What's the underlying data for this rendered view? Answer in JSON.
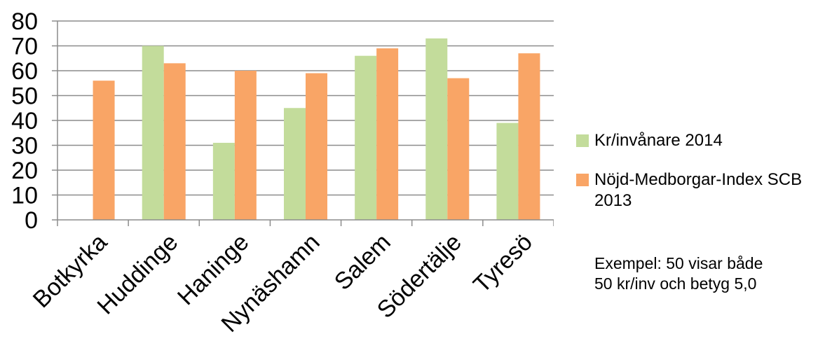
{
  "chart_data": {
    "type": "bar",
    "categories": [
      "Botkyrka",
      "Huddinge",
      "Haninge",
      "Nynäshamn",
      "Salem",
      "Södertälje",
      "Tyresö"
    ],
    "series": [
      {
        "name": "Kr/invånare 2014",
        "color": "#c3dc9b",
        "values": [
          null,
          70,
          31,
          45,
          66,
          73,
          39
        ]
      },
      {
        "name": "Nöjd-Medborgar-Index SCB 2013",
        "color": "#f9a566",
        "values": [
          56,
          63,
          60,
          59,
          69,
          57,
          67
        ]
      }
    ],
    "yticks": [
      "0",
      "10",
      "20",
      "30",
      "40",
      "50",
      "60",
      "70",
      "80"
    ],
    "ylim": [
      0,
      80
    ],
    "grid": true,
    "legend_position": "right",
    "note": "Exempel: 50 visar både\n50 kr/inv och betyg 5,0"
  }
}
